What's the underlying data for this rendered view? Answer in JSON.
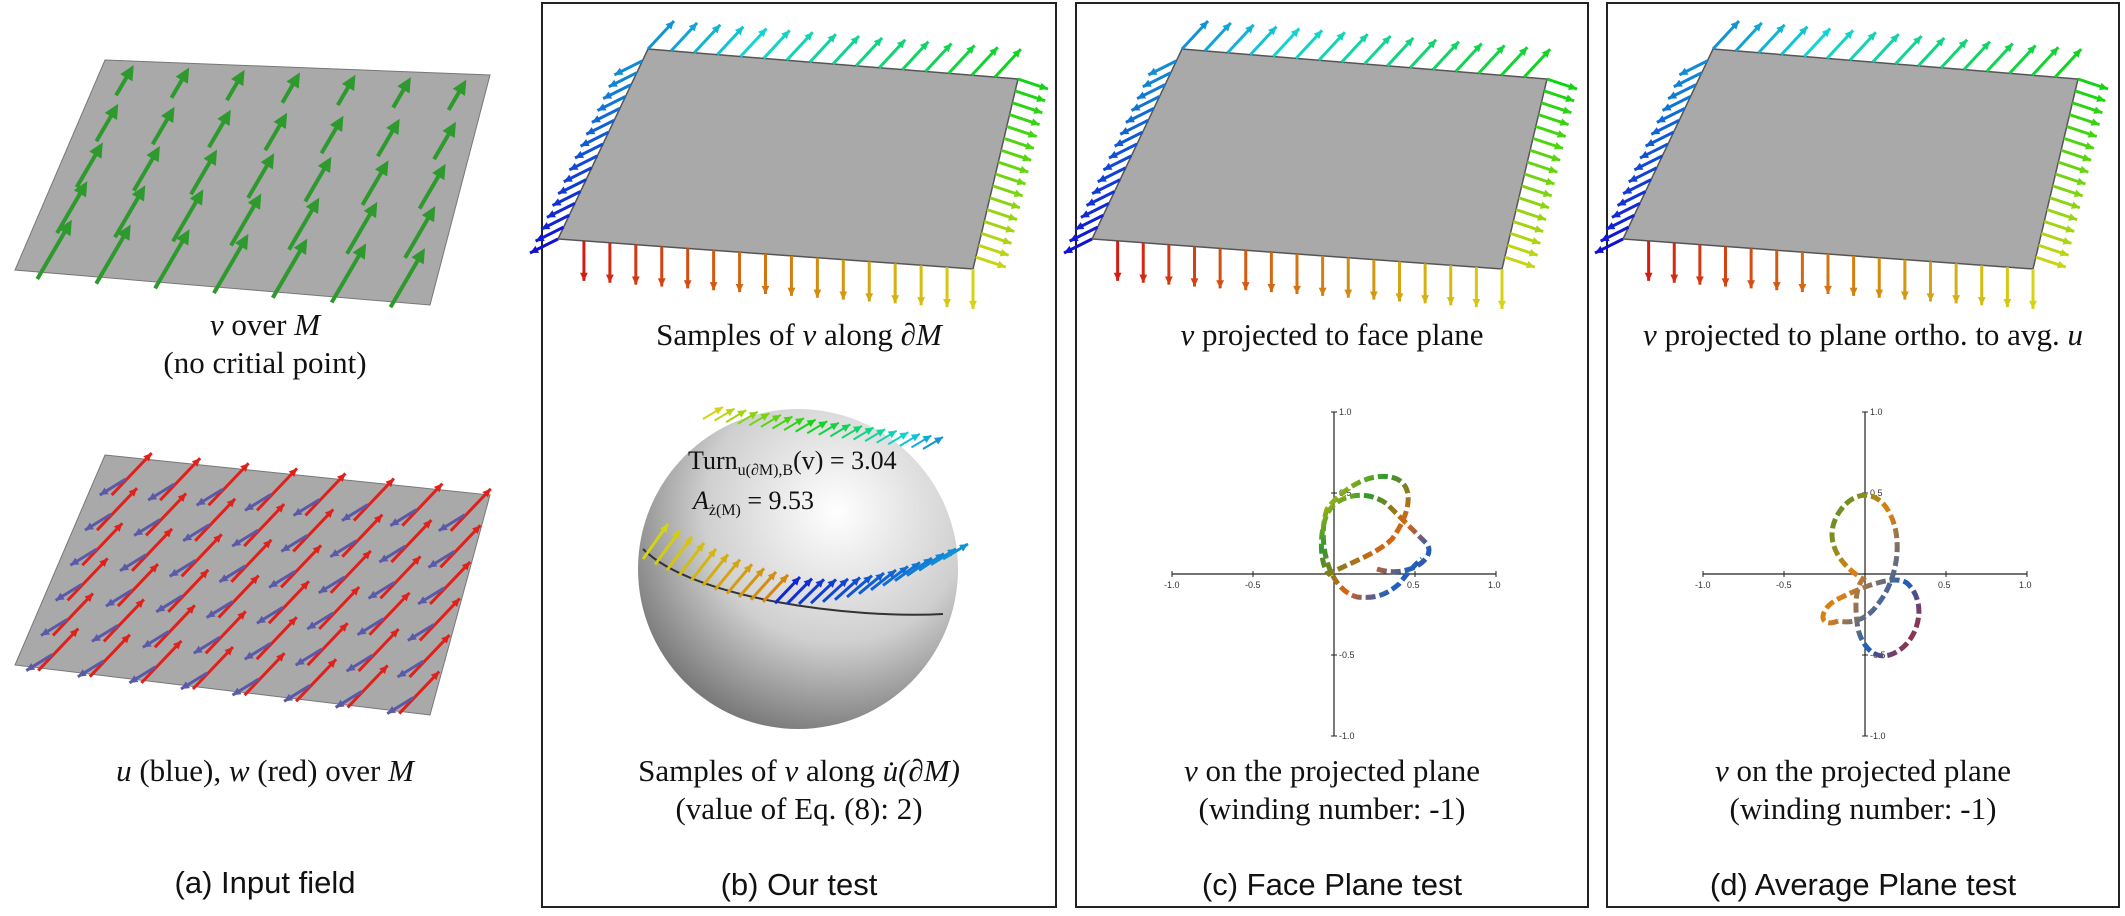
{
  "panels": [
    {
      "label": "(a) Input field",
      "top_caption": {
        "var": "v",
        "mid": " over ",
        "set": "M"
      },
      "top_caption_line2": "(no critial point)",
      "bottom_caption": {
        "u": "u",
        "u_txt": " (blue), ",
        "w": "w",
        "w_txt": " (red) over ",
        "set": "M"
      }
    },
    {
      "label": "(b) Our test",
      "top_caption": {
        "pre": "Samples of ",
        "var": "v",
        "mid": " along ",
        "set": "∂M"
      },
      "bottom_caption": {
        "pre": "Samples of ",
        "var": "v",
        "mid": " along ",
        "set": "u̇(∂M)"
      },
      "bottom_caption_line2": "(value of Eq. (8): 2)",
      "turn_label": "Turn",
      "turn_sub": "u(∂M),B",
      "turn_arg": "(v) = 3.04",
      "area_label": "A",
      "area_sub": "ż(M)",
      "area_val": " = 9.53"
    },
    {
      "label": "(c) Face Plane test",
      "top_caption": {
        "var": "v",
        "rest": " projected to face plane"
      },
      "bottom_caption": {
        "var": "v",
        "rest": " on the projected plane"
      },
      "bottom_caption_line2": "(winding number: -1)"
    },
    {
      "label": "(d) Average Plane test",
      "top_caption": {
        "var": "v",
        "rest": " projected to plane ortho. to avg. ",
        "var2": "u"
      },
      "bottom_caption": {
        "var": "v",
        "rest": " on the projected plane"
      },
      "bottom_caption_line2": "(winding number: -1)"
    }
  ],
  "plot_ticks": {
    "x": [
      "-1.0",
      "-0.5",
      "0.5",
      "1.0"
    ],
    "y": [
      "1.0",
      "0.5",
      "-0.5",
      "-1.0"
    ]
  },
  "colors": {
    "plane": "#a9a9a9",
    "green_arrow": "#2e9a2e",
    "red_arrow": "#e0201a",
    "blue_arrow": "#5a5aa8",
    "sphere": "#d8d8d8"
  }
}
